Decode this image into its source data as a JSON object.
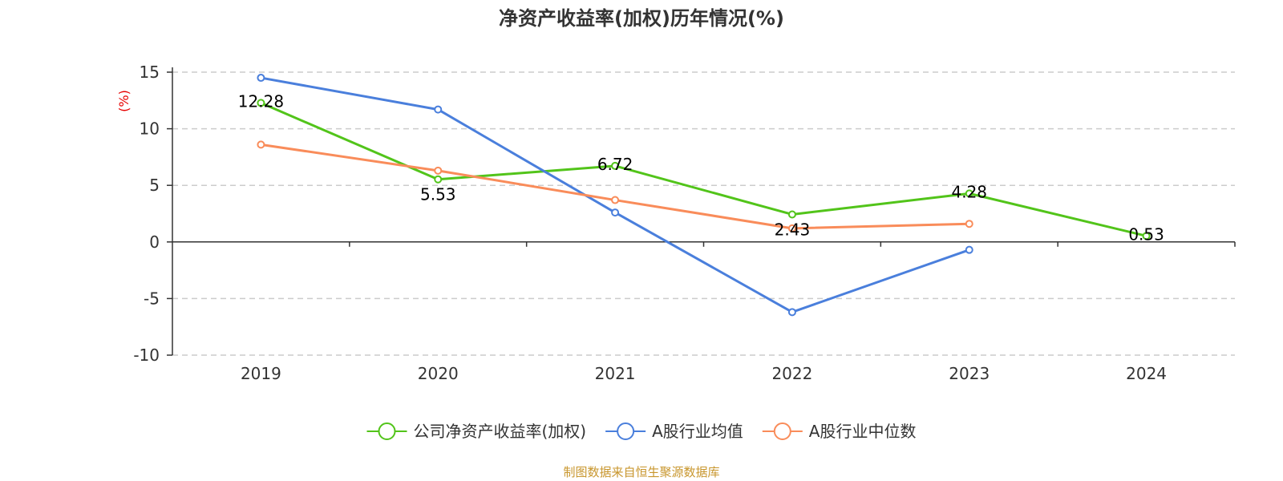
{
  "chart_data": {
    "type": "line",
    "title": "净资产收益率(加权)历年情况(%)",
    "ylabel": "(%)",
    "categories": [
      "2019",
      "2020",
      "2021",
      "2022",
      "2023",
      "2024"
    ],
    "ylim": [
      -10,
      15
    ],
    "yticks": [
      15,
      10,
      5,
      0,
      -5,
      -10
    ],
    "grid": true,
    "legend_position": "bottom",
    "series": [
      {
        "name": "公司净资产收益率(加权)",
        "color": "#52c41a",
        "values": [
          12.28,
          5.53,
          6.72,
          2.43,
          4.28,
          0.53
        ],
        "labels": [
          "12.28",
          "5.53",
          "6.72",
          "2.43",
          "4.28",
          "0.53"
        ]
      },
      {
        "name": "A股行业均值",
        "color": "#4a7fdc",
        "values": [
          14.5,
          11.7,
          2.6,
          -6.2,
          -0.7,
          null
        ]
      },
      {
        "name": "A股行业中位数",
        "color": "#f98c5a",
        "values": [
          8.6,
          6.3,
          3.7,
          1.2,
          1.6,
          null
        ]
      }
    ]
  },
  "footer": {
    "source": "制图数据来自恒生聚源数据库"
  }
}
